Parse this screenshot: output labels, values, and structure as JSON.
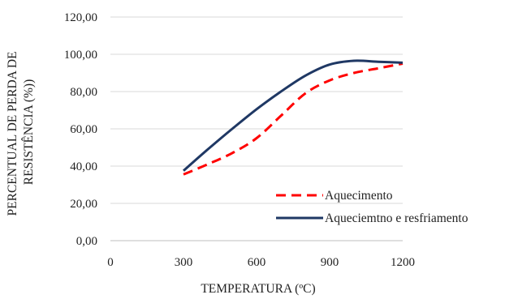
{
  "chart_data": {
    "type": "line",
    "xlabel": "TEMPERATURA (ºC)",
    "ylabel_lines": [
      "PERCENTUAL DE PERDA DE",
      "RESISTÊNCIA (%))"
    ],
    "xlim": [
      0,
      1200
    ],
    "ylim": [
      0,
      120
    ],
    "x_ticks": [
      0,
      300,
      600,
      900,
      1200
    ],
    "x_tick_labels": [
      "0",
      "300",
      "600",
      "900",
      "1200"
    ],
    "y_ticks": [
      0,
      20,
      40,
      60,
      80,
      100,
      120
    ],
    "y_tick_labels": [
      "0,00",
      "20,00",
      "40,00",
      "60,00",
      "80,00",
      "100,00",
      "120,00"
    ],
    "grid": "horizontal",
    "legend_position": "bottom-right",
    "series": [
      {
        "name": "Aquecimento",
        "color": "#ff0000",
        "style": "dashed",
        "x": [
          300,
          400,
          500,
          600,
          700,
          800,
          900,
          1000,
          1100,
          1200
        ],
        "y": [
          35.5,
          41,
          47,
          55,
          67,
          79,
          86,
          90,
          92.5,
          95
        ]
      },
      {
        "name": "Aqueciemtno e resfriamento",
        "color": "#1f3864",
        "style": "solid",
        "x": [
          300,
          400,
          500,
          600,
          700,
          800,
          900,
          1000,
          1100,
          1200
        ],
        "y": [
          37.5,
          49,
          60,
          70.5,
          80,
          88.5,
          94.5,
          96.5,
          96,
          95.5
        ]
      }
    ]
  }
}
